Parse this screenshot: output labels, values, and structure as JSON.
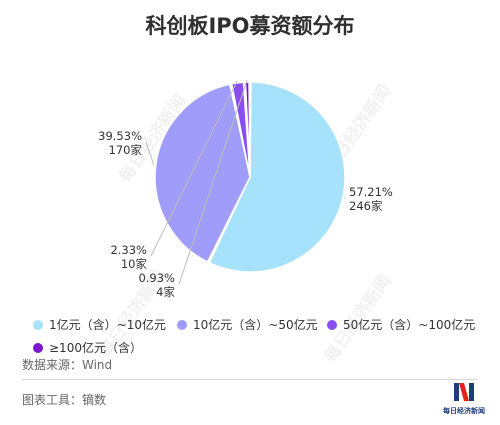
{
  "colors": {
    "title": "#2f2f2f",
    "label": "#333333",
    "muted": "#666666",
    "leader": "#bbbbbb",
    "slice_colors": [
      "#a6e2fb",
      "#a09cf9",
      "#8a4ef0",
      "#7b14cd"
    ]
  },
  "source_text": "数据来源：Wind",
  "tool_text": "图表工具：镝数",
  "watermark_text": "每日经济新闻",
  "logo": {
    "text": "每日经济新闻",
    "icon": "nbd-logo-icon"
  },
  "chart_data": {
    "type": "pie",
    "title": "科创板IPO募资额分布",
    "slices": [
      {
        "label": "1亿元（含）~10亿元",
        "percent_label": "57.21%",
        "count_label": "246家",
        "value": 246
      },
      {
        "label": "10亿元（含）~50亿元",
        "percent_label": "39.53%",
        "count_label": "170家",
        "value": 170
      },
      {
        "label": "50亿元（含）~100亿元",
        "percent_label": "2.33%",
        "count_label": "10家",
        "value": 10
      },
      {
        "label": "≥100亿元（含）",
        "percent_label": "0.93%",
        "count_label": "4家",
        "value": 4
      }
    ],
    "legend_position": "bottom"
  }
}
